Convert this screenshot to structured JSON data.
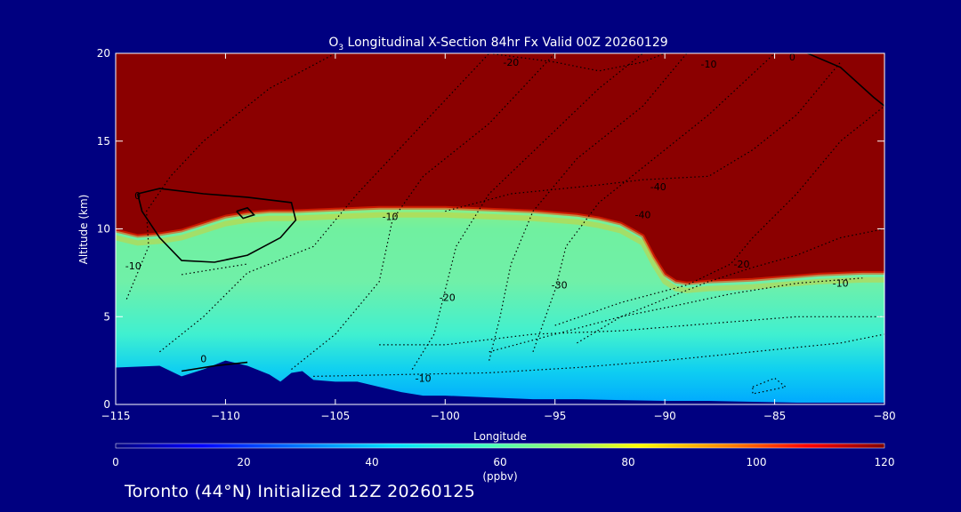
{
  "chart_data": {
    "type": "heatmap",
    "title_main": "O",
    "title_sub": "3",
    "title_rest": " Longitudinal X-Section 84hr  Fx Valid 00Z 20260129",
    "xlabel": "Longitude",
    "ylabel": "Altitude (km)",
    "xlim": [
      -115,
      -80
    ],
    "ylim": [
      0,
      20
    ],
    "x_ticks": [
      -115,
      -110,
      -105,
      -100,
      -95,
      -90,
      -85,
      -80
    ],
    "x_tick_labels": [
      "−115",
      "−110",
      "−105",
      "−100",
      "−95",
      "−90",
      "−85",
      "−80"
    ],
    "y_ticks": [
      0,
      5,
      10,
      15,
      20
    ],
    "y_tick_labels": [
      "0",
      "5",
      "10",
      "15",
      "20"
    ],
    "colorbar": {
      "label": "(ppbv)",
      "range": [
        0,
        120
      ],
      "ticks": [
        0,
        20,
        40,
        60,
        80,
        100,
        120
      ],
      "tick_labels": [
        "0",
        "20",
        "40",
        "60",
        "80",
        "100",
        "120"
      ],
      "colors": [
        "#000080",
        "#0000ff",
        "#0080ff",
        "#00e0ff",
        "#40ffc0",
        "#a0ff60",
        "#ffff00",
        "#ff8000",
        "#ff0000",
        "#800000"
      ]
    },
    "stratosphere_boundary": {
      "description": "O3 saturated (>=120 ppbv) region top, boundary altitude by longitude",
      "x": [
        -115,
        -114,
        -113,
        -112,
        -111,
        -110,
        -109,
        -108,
        -107,
        -106,
        -105,
        -104,
        -103,
        -102,
        -101,
        -100,
        -99,
        -98,
        -97,
        -96,
        -95,
        -94,
        -93,
        -92,
        -91,
        -90.5,
        -90,
        -89.5,
        -89,
        -88,
        -87,
        -86,
        -85,
        -84,
        -83,
        -82,
        -81,
        -80
      ],
      "y": [
        9.9,
        9.6,
        9.7,
        9.9,
        10.3,
        10.7,
        10.9,
        11.0,
        11.0,
        11.05,
        11.1,
        11.15,
        11.2,
        11.2,
        11.2,
        11.2,
        11.15,
        11.1,
        11.05,
        11.0,
        10.9,
        10.8,
        10.6,
        10.3,
        9.6,
        8.4,
        7.4,
        7.0,
        6.9,
        7.0,
        7.05,
        7.1,
        7.2,
        7.3,
        7.4,
        7.45,
        7.5,
        7.5
      ]
    },
    "terrain": {
      "x": [
        -115,
        -113,
        -112,
        -111,
        -110,
        -109,
        -108,
        -107.5,
        -107,
        -106.5,
        -106,
        -105,
        -104,
        -103,
        -102,
        -101,
        -100,
        -98,
        -96,
        -94,
        -92,
        -90,
        -88,
        -86,
        -84,
        -82,
        -80
      ],
      "y": [
        2.1,
        2.2,
        1.6,
        2.0,
        2.5,
        2.2,
        1.7,
        1.3,
        1.8,
        1.9,
        1.4,
        1.3,
        1.3,
        1.0,
        0.7,
        0.5,
        0.5,
        0.4,
        0.3,
        0.3,
        0.25,
        0.2,
        0.2,
        0.15,
        0.1,
        0.1,
        0.1
      ]
    },
    "contour_labels": [
      {
        "text": "-20",
        "x": -97.0,
        "y": 19.3
      },
      {
        "text": "-10",
        "x": -88.0,
        "y": 19.2
      },
      {
        "text": "0",
        "x": -84.2,
        "y": 19.6
      },
      {
        "text": "0",
        "x": -114.0,
        "y": 11.7
      },
      {
        "text": "-40",
        "x": -90.3,
        "y": 12.2
      },
      {
        "text": "-10",
        "x": -102.5,
        "y": 10.5
      },
      {
        "text": "-40",
        "x": -91.0,
        "y": 10.6
      },
      {
        "text": "-10",
        "x": -114.2,
        "y": 7.7
      },
      {
        "text": "-20",
        "x": -86.5,
        "y": 7.8
      },
      {
        "text": "-10",
        "x": -82.0,
        "y": 6.7
      },
      {
        "text": "-30",
        "x": -94.8,
        "y": 6.6
      },
      {
        "text": "-20",
        "x": -99.9,
        "y": 5.9
      },
      {
        "text": "0",
        "x": -111.0,
        "y": 2.4
      },
      {
        "text": "-10",
        "x": -101.0,
        "y": 1.3
      }
    ]
  },
  "footer": "Toronto (44°N) Initialized 12Z 20260125"
}
